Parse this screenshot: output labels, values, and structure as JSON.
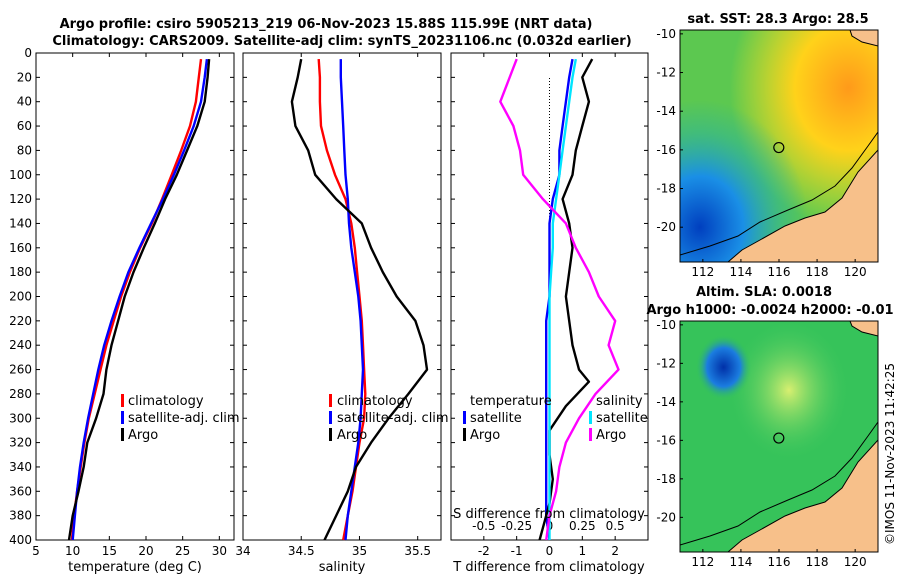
{
  "titles": {
    "line1": "Argo profile: csiro 5905213_219 06-Nov-2023 15.88S 115.99E (NRT data)",
    "line2": "Climatology: CARS2009. Satellite-adj clim: synTS_20231106.nc (0.032d earlier)"
  },
  "watermark": "©IMOS 11-Nov-2023 11:42:25",
  "colors": {
    "clim": "#ff0000",
    "sat": "#0000ff",
    "argo": "#000000",
    "sal_sat": "#00e5ff",
    "sal_argo": "#ff00ff"
  },
  "chart_data": [
    {
      "id": "temperature",
      "type": "line",
      "xlabel": "temperature (deg C)",
      "ylabel": "",
      "xlim": [
        5,
        32
      ],
      "ylim": [
        400,
        0
      ],
      "xticks": [
        5,
        10,
        15,
        20,
        25,
        30
      ],
      "yticks": [
        0,
        20,
        40,
        60,
        80,
        100,
        120,
        140,
        160,
        180,
        200,
        220,
        240,
        260,
        280,
        300,
        320,
        340,
        360,
        380,
        400
      ],
      "legend": [
        "climatology",
        "satellite-adj. clim",
        "Argo"
      ],
      "series": [
        {
          "name": "climatology",
          "color": "red",
          "points": [
            [
              27.5,
              5
            ],
            [
              27.2,
              20
            ],
            [
              26.8,
              40
            ],
            [
              26.0,
              60
            ],
            [
              24.8,
              80
            ],
            [
              23.5,
              100
            ],
            [
              22.2,
              120
            ],
            [
              20.8,
              140
            ],
            [
              19.2,
              160
            ],
            [
              17.8,
              180
            ],
            [
              16.6,
              200
            ],
            [
              15.6,
              220
            ],
            [
              14.6,
              240
            ],
            [
              13.8,
              260
            ],
            [
              13.0,
              280
            ],
            [
              12.2,
              300
            ],
            [
              11.6,
              320
            ],
            [
              11.1,
              340
            ],
            [
              10.6,
              360
            ],
            [
              10.2,
              380
            ],
            [
              9.9,
              400
            ]
          ]
        },
        {
          "name": "satellite-adj. clim",
          "color": "blue",
          "points": [
            [
              28.3,
              5
            ],
            [
              28.0,
              20
            ],
            [
              27.5,
              40
            ],
            [
              26.5,
              60
            ],
            [
              25.2,
              80
            ],
            [
              23.8,
              100
            ],
            [
              22.3,
              120
            ],
            [
              20.7,
              140
            ],
            [
              19.1,
              160
            ],
            [
              17.6,
              180
            ],
            [
              16.4,
              200
            ],
            [
              15.3,
              220
            ],
            [
              14.3,
              240
            ],
            [
              13.5,
              260
            ],
            [
              12.8,
              280
            ],
            [
              12.1,
              300
            ],
            [
              11.5,
              320
            ],
            [
              11.0,
              340
            ],
            [
              10.6,
              360
            ],
            [
              10.3,
              380
            ],
            [
              10.0,
              400
            ]
          ]
        },
        {
          "name": "Argo",
          "color": "black",
          "points": [
            [
              28.6,
              5
            ],
            [
              28.4,
              20
            ],
            [
              28.0,
              40
            ],
            [
              27.0,
              60
            ],
            [
              25.6,
              80
            ],
            [
              24.2,
              100
            ],
            [
              22.6,
              120
            ],
            [
              21.2,
              140
            ],
            [
              19.7,
              160
            ],
            [
              18.3,
              180
            ],
            [
              17.1,
              200
            ],
            [
              16.2,
              220
            ],
            [
              15.3,
              240
            ],
            [
              14.6,
              260
            ],
            [
              14.2,
              280
            ],
            [
              13.2,
              300
            ],
            [
              12.0,
              320
            ],
            [
              11.5,
              340
            ],
            [
              10.8,
              360
            ],
            [
              10.0,
              380
            ],
            [
              9.5,
              400
            ]
          ]
        }
      ]
    },
    {
      "id": "salinity",
      "type": "line",
      "xlabel": "salinity",
      "ylabel": "",
      "xlim": [
        34,
        35.7
      ],
      "ylim": [
        400,
        0
      ],
      "xticks": [
        34,
        34.5,
        35,
        35.5
      ],
      "legend": [
        "climatology",
        "satellite-adj. clim",
        "Argo"
      ],
      "series": [
        {
          "name": "climatology",
          "color": "red",
          "points": [
            [
              34.65,
              5
            ],
            [
              34.66,
              20
            ],
            [
              34.66,
              40
            ],
            [
              34.67,
              60
            ],
            [
              34.72,
              80
            ],
            [
              34.79,
              100
            ],
            [
              34.88,
              120
            ],
            [
              34.93,
              140
            ],
            [
              34.96,
              160
            ],
            [
              34.98,
              180
            ],
            [
              35.0,
              200
            ],
            [
              35.02,
              220
            ],
            [
              35.03,
              240
            ],
            [
              35.04,
              260
            ],
            [
              35.05,
              280
            ],
            [
              35.04,
              300
            ],
            [
              35.0,
              320
            ],
            [
              34.97,
              340
            ],
            [
              34.94,
              360
            ],
            [
              34.9,
              380
            ],
            [
              34.86,
              400
            ]
          ]
        },
        {
          "name": "satellite-adj. clim",
          "color": "blue",
          "points": [
            [
              34.84,
              5
            ],
            [
              34.84,
              20
            ],
            [
              34.85,
              40
            ],
            [
              34.86,
              60
            ],
            [
              34.87,
              80
            ],
            [
              34.88,
              100
            ],
            [
              34.9,
              120
            ],
            [
              34.91,
              140
            ],
            [
              34.93,
              160
            ],
            [
              34.96,
              180
            ],
            [
              34.99,
              200
            ],
            [
              35.01,
              220
            ],
            [
              35.02,
              240
            ],
            [
              35.03,
              260
            ],
            [
              35.02,
              280
            ],
            [
              35.01,
              300
            ],
            [
              34.99,
              320
            ],
            [
              34.96,
              340
            ],
            [
              34.93,
              360
            ],
            [
              34.9,
              380
            ],
            [
              34.88,
              400
            ]
          ]
        },
        {
          "name": "Argo",
          "color": "black",
          "points": [
            [
              34.5,
              5
            ],
            [
              34.47,
              20
            ],
            [
              34.42,
              40
            ],
            [
              34.45,
              60
            ],
            [
              34.56,
              80
            ],
            [
              34.62,
              100
            ],
            [
              34.8,
              120
            ],
            [
              35.02,
              140
            ],
            [
              35.1,
              160
            ],
            [
              35.2,
              180
            ],
            [
              35.32,
              200
            ],
            [
              35.48,
              220
            ],
            [
              35.55,
              240
            ],
            [
              35.58,
              260
            ],
            [
              35.42,
              280
            ],
            [
              35.25,
              300
            ],
            [
              35.1,
              320
            ],
            [
              34.97,
              340
            ],
            [
              34.9,
              360
            ],
            [
              34.8,
              380
            ],
            [
              34.7,
              400
            ]
          ]
        }
      ]
    },
    {
      "id": "difference",
      "type": "line",
      "xlabel": "T difference from climatology",
      "xlabel_top": "S difference from climatology",
      "xlim": [
        -3,
        3
      ],
      "ylim": [
        400,
        0
      ],
      "xticks": [
        -2,
        -1,
        0,
        1,
        2
      ],
      "xticks_s": [
        "-0.5",
        "-0.25",
        "0",
        "0.25",
        "0.5"
      ],
      "legend_left_title": "temperature",
      "legend_right_title": "salinity",
      "legend_left": [
        "satellite",
        "Argo"
      ],
      "legend_right": [
        "satellite",
        "Argo"
      ],
      "series": [
        {
          "name": "T satellite",
          "color": "blue",
          "points": [
            [
              0.7,
              5
            ],
            [
              0.6,
              20
            ],
            [
              0.5,
              40
            ],
            [
              0.4,
              60
            ],
            [
              0.3,
              80
            ],
            [
              0.3,
              100
            ],
            [
              0.1,
              120
            ],
            [
              0.0,
              140
            ],
            [
              0.0,
              160
            ],
            [
              0.0,
              180
            ],
            [
              0.0,
              200
            ],
            [
              -0.1,
              220
            ],
            [
              -0.1,
              240
            ],
            [
              -0.1,
              260
            ],
            [
              -0.1,
              280
            ],
            [
              -0.1,
              300
            ],
            [
              -0.1,
              320
            ],
            [
              -0.1,
              340
            ],
            [
              -0.1,
              360
            ],
            [
              -0.1,
              380
            ],
            [
              0.0,
              400
            ]
          ]
        },
        {
          "name": "T Argo",
          "color": "black",
          "points": [
            [
              1.3,
              5
            ],
            [
              1.0,
              20
            ],
            [
              1.2,
              40
            ],
            [
              1.0,
              60
            ],
            [
              0.8,
              80
            ],
            [
              0.7,
              100
            ],
            [
              0.4,
              120
            ],
            [
              0.6,
              140
            ],
            [
              0.7,
              160
            ],
            [
              0.6,
              180
            ],
            [
              0.5,
              200
            ],
            [
              0.6,
              220
            ],
            [
              0.7,
              240
            ],
            [
              0.9,
              260
            ],
            [
              1.2,
              270
            ],
            [
              0.5,
              290
            ],
            [
              0.0,
              310
            ],
            [
              0.0,
              330
            ],
            [
              0.1,
              350
            ],
            [
              0.0,
              370
            ],
            [
              -0.2,
              390
            ],
            [
              -0.3,
              400
            ]
          ]
        },
        {
          "name": "S satellite",
          "color": "cyan",
          "points": [
            [
              0.8,
              5
            ],
            [
              0.7,
              20
            ],
            [
              0.6,
              40
            ],
            [
              0.5,
              60
            ],
            [
              0.4,
              80
            ],
            [
              0.3,
              100
            ],
            [
              0.2,
              120
            ],
            [
              0.1,
              140
            ],
            [
              0.1,
              160
            ],
            [
              0.05,
              180
            ],
            [
              0.0,
              200
            ],
            [
              0.0,
              220
            ],
            [
              0.0,
              240
            ],
            [
              0.0,
              260
            ],
            [
              0.0,
              280
            ],
            [
              0.0,
              300
            ],
            [
              0.0,
              320
            ],
            [
              0.0,
              340
            ],
            [
              0.0,
              360
            ],
            [
              0.0,
              380
            ],
            [
              0.0,
              400
            ]
          ]
        },
        {
          "name": "S Argo",
          "color": "magenta",
          "points": [
            [
              -1.0,
              5
            ],
            [
              -1.5,
              40
            ],
            [
              -1.1,
              60
            ],
            [
              -0.9,
              80
            ],
            [
              -0.8,
              100
            ],
            [
              -0.2,
              120
            ],
            [
              0.5,
              140
            ],
            [
              0.8,
              160
            ],
            [
              1.2,
              180
            ],
            [
              1.5,
              200
            ],
            [
              2.0,
              220
            ],
            [
              1.8,
              240
            ],
            [
              2.1,
              260
            ],
            [
              1.4,
              280
            ],
            [
              0.9,
              300
            ],
            [
              0.5,
              320
            ],
            [
              0.3,
              340
            ],
            [
              0.2,
              360
            ],
            [
              0.0,
              380
            ],
            [
              -0.1,
              400
            ]
          ]
        }
      ]
    }
  ],
  "maps": {
    "sst": {
      "title": "sat. SST: 28.3 Argo: 28.5",
      "xticks": [
        "112",
        "114",
        "116",
        "118",
        "120"
      ],
      "yticks": [
        "-10",
        "-12",
        "-14",
        "-16",
        "-18",
        "-20"
      ],
      "lon_range": [
        110.8,
        121.2
      ],
      "lat_range": [
        -21.8,
        -9.8
      ],
      "argo_lon": 115.99,
      "argo_lat": -15.88
    },
    "sla": {
      "title_line1": "Altim. SLA: 0.0018",
      "title_line2": "Argo h1000: -0.0024 h2000: -0.01",
      "xticks": [
        "112",
        "114",
        "116",
        "118",
        "120"
      ],
      "yticks": [
        "-10",
        "-12",
        "-14",
        "-16",
        "-18",
        "-20"
      ],
      "lon_range": [
        110.8,
        121.2
      ],
      "lat_range": [
        -21.8,
        -9.8
      ],
      "argo_lon": 115.99,
      "argo_lat": -15.88
    }
  }
}
